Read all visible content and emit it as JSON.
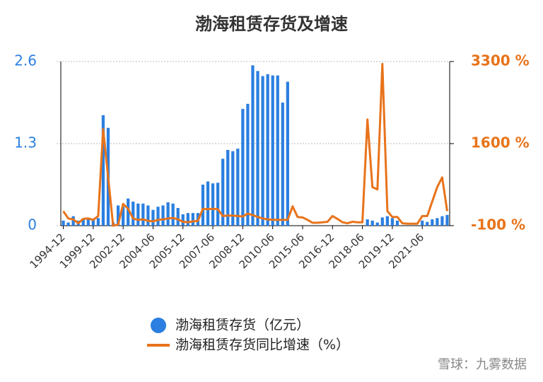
{
  "chart_data": {
    "type": "bar_line",
    "title": "渤海租赁存货及增速",
    "categories": [
      "1994-12",
      null,
      null,
      null,
      null,
      null,
      "1999-12",
      null,
      null,
      null,
      null,
      null,
      "2002-12",
      null,
      null,
      null,
      null,
      null,
      "2004-06",
      null,
      null,
      null,
      null,
      null,
      "2005-12",
      null,
      null,
      null,
      null,
      null,
      "2007-06",
      null,
      null,
      null,
      null,
      null,
      "2008-12",
      null,
      null,
      null,
      null,
      null,
      "2010-06",
      null,
      null,
      null,
      null,
      null,
      "2015-06",
      null,
      null,
      null,
      null,
      null,
      "2016-12",
      null,
      null,
      null,
      null,
      null,
      "2018-06",
      null,
      null,
      null,
      null,
      null,
      "2019-12",
      null,
      null,
      null,
      null,
      null,
      "2021-06",
      null,
      null,
      null,
      null,
      null
    ],
    "series": [
      {
        "name": "渤海租赁存货（亿元）",
        "color": "#2a7fe0",
        "type": "bar",
        "axis": "y",
        "values": [
          0.08,
          0.05,
          0.15,
          0.08,
          0.1,
          0.1,
          0.1,
          0.12,
          1.75,
          1.55,
          0.05,
          0.32,
          0.3,
          0.43,
          0.38,
          0.35,
          0.35,
          0.32,
          0.25,
          0.3,
          0.32,
          0.37,
          0.35,
          0.28,
          0.18,
          0.2,
          0.2,
          0.2,
          0.65,
          0.7,
          0.67,
          0.68,
          1.06,
          1.2,
          1.18,
          1.22,
          1.85,
          1.93,
          2.54,
          2.45,
          2.37,
          2.4,
          2.38,
          2.38,
          1.95,
          2.28,
          null,
          null,
          null,
          null,
          null,
          null,
          null,
          null,
          null,
          null,
          null,
          null,
          null,
          null,
          null,
          0.1,
          0.08,
          0.05,
          0.13,
          0.15,
          0.12,
          0.08,
          null,
          null,
          null,
          null,
          0.08,
          0.06,
          0.1,
          0.12,
          0.15,
          0.17
        ]
      },
      {
        "name": "渤海租赁存货同比增速（%）",
        "color": "#e8731a",
        "type": "line",
        "axis": "y2",
        "values": [
          200,
          50,
          30,
          -50,
          40,
          50,
          20,
          100,
          1900,
          900,
          -100,
          -80,
          350,
          250,
          50,
          20,
          30,
          0,
          -10,
          20,
          30,
          50,
          60,
          30,
          -20,
          -30,
          -10,
          0,
          250,
          240,
          250,
          240,
          100,
          110,
          110,
          100,
          90,
          150,
          120,
          80,
          50,
          30,
          20,
          20,
          20,
          20,
          300,
          80,
          70,
          20,
          -40,
          -40,
          -30,
          -20,
          100,
          40,
          -30,
          -50,
          -20,
          -30,
          -30,
          2100,
          700,
          650,
          3250,
          200,
          80,
          80,
          -50,
          -60,
          -60,
          -60,
          100,
          100,
          400,
          700,
          900,
          200
        ]
      }
    ],
    "ylim": [
      0,
      2.6
    ],
    "yticks": [
      0,
      1.3,
      2.6
    ],
    "y2lim": [
      -100,
      3300
    ],
    "y2ticks": [
      {
        "value": -100,
        "label": "-100 %"
      },
      {
        "value": 1600,
        "label": "1600 %"
      },
      {
        "value": 3300,
        "label": "3300 %"
      }
    ],
    "watermark": "雪球：九雾数据"
  }
}
